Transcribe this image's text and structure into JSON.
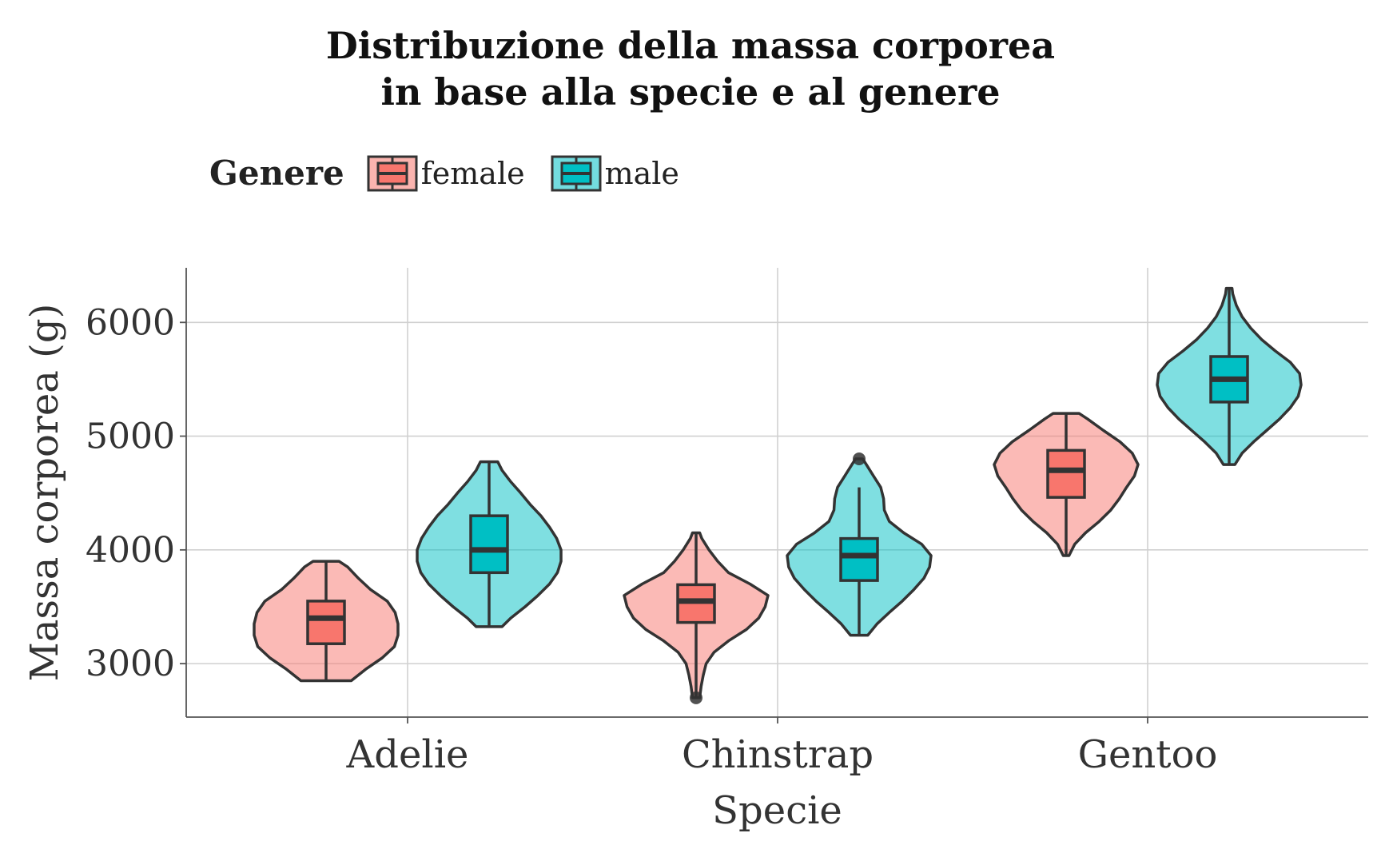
{
  "chart_data": {
    "type": "violin",
    "title": [
      "Distribuzione della massa corporea",
      "in base alla specie e al genere"
    ],
    "xlabel": "Specie",
    "ylabel": "Massa corporea (g)",
    "categories": [
      "Adelie",
      "Chinstrap",
      "Gentoo"
    ],
    "yticks": [
      3000,
      4000,
      5000,
      6000
    ],
    "ylim": [
      2530,
      6480
    ],
    "grid": true,
    "legend": {
      "title": "Genere",
      "position": "top-left",
      "entries": [
        {
          "name": "female",
          "color": "#F8766D"
        },
        {
          "name": "male",
          "color": "#00BFC4"
        }
      ]
    },
    "series": [
      {
        "name": "female",
        "color": "#F8766D",
        "groups": [
          {
            "category": "Adelie",
            "min": 2850,
            "q1": 3175,
            "median": 3400,
            "q3": 3550,
            "max": 3900,
            "outliers": [],
            "density": [
              [
                2850,
                0.35
              ],
              [
                2950,
                0.55
              ],
              [
                3050,
                0.78
              ],
              [
                3150,
                0.95
              ],
              [
                3250,
                1.0
              ],
              [
                3350,
                1.0
              ],
              [
                3450,
                0.96
              ],
              [
                3550,
                0.85
              ],
              [
                3650,
                0.62
              ],
              [
                3750,
                0.45
              ],
              [
                3850,
                0.3
              ],
              [
                3900,
                0.18
              ]
            ]
          },
          {
            "category": "Chinstrap",
            "min": 2700,
            "q1": 3362,
            "median": 3550,
            "q3": 3694,
            "max": 4150,
            "outliers": [
              2700
            ],
            "density": [
              [
                2700,
                0.05
              ],
              [
                2800,
                0.07
              ],
              [
                2900,
                0.1
              ],
              [
                3000,
                0.14
              ],
              [
                3100,
                0.25
              ],
              [
                3200,
                0.45
              ],
              [
                3300,
                0.7
              ],
              [
                3400,
                0.87
              ],
              [
                3500,
                0.96
              ],
              [
                3600,
                1.0
              ],
              [
                3700,
                0.75
              ],
              [
                3800,
                0.45
              ],
              [
                3900,
                0.3
              ],
              [
                4000,
                0.18
              ],
              [
                4100,
                0.08
              ],
              [
                4150,
                0.05
              ]
            ]
          },
          {
            "category": "Gentoo",
            "min": 3950,
            "q1": 4462,
            "median": 4700,
            "q3": 4875,
            "max": 5200,
            "outliers": [],
            "density": [
              [
                3950,
                0.04
              ],
              [
                4050,
                0.12
              ],
              [
                4150,
                0.27
              ],
              [
                4250,
                0.46
              ],
              [
                4350,
                0.62
              ],
              [
                4450,
                0.74
              ],
              [
                4550,
                0.84
              ],
              [
                4650,
                0.95
              ],
              [
                4750,
                1.0
              ],
              [
                4850,
                0.92
              ],
              [
                4950,
                0.75
              ],
              [
                5050,
                0.52
              ],
              [
                5150,
                0.3
              ],
              [
                5200,
                0.18
              ]
            ]
          }
        ]
      },
      {
        "name": "male",
        "color": "#00BFC4",
        "groups": [
          {
            "category": "Adelie",
            "min": 3325,
            "q1": 3800,
            "median": 4000,
            "q3": 4300,
            "max": 4775,
            "outliers": [],
            "density": [
              [
                3325,
                0.18
              ],
              [
                3400,
                0.3
              ],
              [
                3500,
                0.5
              ],
              [
                3600,
                0.68
              ],
              [
                3700,
                0.84
              ],
              [
                3800,
                0.95
              ],
              [
                3900,
                1.0
              ],
              [
                4000,
                1.0
              ],
              [
                4100,
                0.94
              ],
              [
                4200,
                0.84
              ],
              [
                4300,
                0.72
              ],
              [
                4400,
                0.57
              ],
              [
                4500,
                0.44
              ],
              [
                4600,
                0.3
              ],
              [
                4700,
                0.18
              ],
              [
                4775,
                0.12
              ]
            ]
          },
          {
            "category": "Chinstrap",
            "min": 3250,
            "q1": 3731,
            "median": 3950,
            "q3": 4100,
            "max": 4550,
            "outliers": [
              4800
            ],
            "density": [
              [
                3250,
                0.12
              ],
              [
                3350,
                0.25
              ],
              [
                3450,
                0.42
              ],
              [
                3550,
                0.6
              ],
              [
                3650,
                0.76
              ],
              [
                3750,
                0.9
              ],
              [
                3850,
                0.98
              ],
              [
                3950,
                1.0
              ],
              [
                4050,
                0.87
              ],
              [
                4150,
                0.62
              ],
              [
                4250,
                0.42
              ],
              [
                4350,
                0.35
              ],
              [
                4450,
                0.34
              ],
              [
                4550,
                0.3
              ],
              [
                4650,
                0.2
              ],
              [
                4750,
                0.1
              ],
              [
                4800,
                0.05
              ]
            ]
          },
          {
            "category": "Gentoo",
            "min": 4750,
            "q1": 5300,
            "median": 5500,
            "q3": 5700,
            "max": 6300,
            "outliers": [],
            "density": [
              [
                4750,
                0.08
              ],
              [
                4850,
                0.18
              ],
              [
                4950,
                0.34
              ],
              [
                5050,
                0.52
              ],
              [
                5150,
                0.7
              ],
              [
                5250,
                0.85
              ],
              [
                5350,
                0.96
              ],
              [
                5450,
                1.0
              ],
              [
                5550,
                0.98
              ],
              [
                5650,
                0.85
              ],
              [
                5750,
                0.64
              ],
              [
                5850,
                0.45
              ],
              [
                5950,
                0.3
              ],
              [
                6050,
                0.18
              ],
              [
                6150,
                0.1
              ],
              [
                6250,
                0.05
              ],
              [
                6300,
                0.04
              ]
            ]
          }
        ]
      }
    ]
  }
}
